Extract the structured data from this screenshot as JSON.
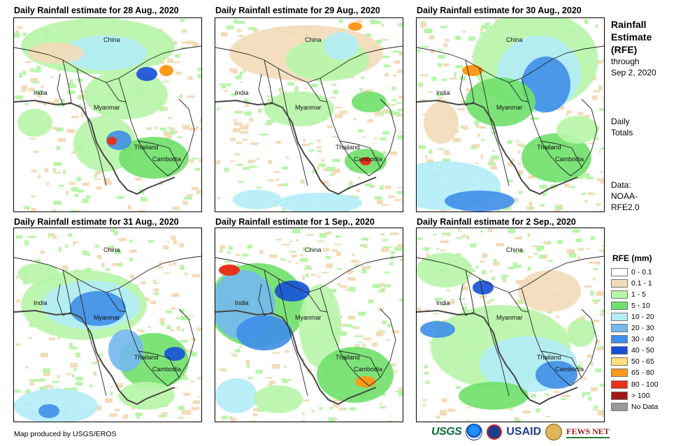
{
  "panels": [
    {
      "title": "Daily Rainfall estimate for 28 Aug., 2020",
      "labels": {
        "china": "China",
        "india": "India",
        "myanmar": "Myanmar",
        "thailand": "Thailand",
        "cambodia": "Cambodia"
      }
    },
    {
      "title": "Daily Rainfall estimate for 29 Aug., 2020",
      "labels": {
        "china": "China",
        "india": "India",
        "myanmar": "Myanmar",
        "thailand": "Thailand",
        "cambodia": "Cambodia"
      }
    },
    {
      "title": "Daily Rainfall estimate for 30 Aug., 2020",
      "labels": {
        "china": "China",
        "india": "India",
        "myanmar": "Myanmar",
        "thailand": "Thailand",
        "cambodia": "Cambodia"
      }
    },
    {
      "title": "Daily Rainfall estimate for 31 Aug., 2020",
      "labels": {
        "china": "China",
        "india": "India",
        "myanmar": "Myanmar",
        "thailand": "Thailand",
        "cambodia": "Cambodia"
      }
    },
    {
      "title": "Daily Rainfall estimate for 1 Sep., 2020",
      "labels": {
        "china": "China",
        "india": "India",
        "myanmar": "Myanmar",
        "thailand": "Thailand",
        "cambodia": "Cambodia"
      }
    },
    {
      "title": "Daily Rainfall estimate for 2 Sep., 2020",
      "labels": {
        "china": "China",
        "india": "India",
        "myanmar": "Myanmar",
        "thailand": "Thailand",
        "cambodia": "Cambodia"
      }
    }
  ],
  "side": {
    "title_lines": [
      "Rainfall",
      "Estimate",
      "(RFE)"
    ],
    "through": "through",
    "date": "Sep 2, 2020",
    "daily": "Daily",
    "totals": "Totals",
    "data_label": "Data:",
    "data_source_1": "NOAA-",
    "data_source_2": "RFE2.0"
  },
  "legend": {
    "title": "RFE (mm)",
    "items": [
      {
        "label": "0 - 0.1",
        "color": "#ffffff"
      },
      {
        "label": "0.1 - 1",
        "color": "#f2dcb9"
      },
      {
        "label": "1 - 5",
        "color": "#b7f5a8"
      },
      {
        "label": "5 - 10",
        "color": "#6fe06a"
      },
      {
        "label": "10 - 20",
        "color": "#b2ecf7"
      },
      {
        "label": "20 - 30",
        "color": "#74b8f0"
      },
      {
        "label": "30 - 40",
        "color": "#3f8ee8"
      },
      {
        "label": "40 - 50",
        "color": "#1650d8"
      },
      {
        "label": "50 - 65",
        "color": "#ffe07a"
      },
      {
        "label": "65 - 80",
        "color": "#ff9a1a"
      },
      {
        "label": "80 - 100",
        "color": "#e8321c"
      },
      {
        "label": "> 100",
        "color": "#a01818"
      },
      {
        "label": "No Data",
        "color": "#9a9a9a"
      }
    ]
  },
  "credit": "Map produced by USGS/EROS",
  "logos": {
    "usgs": "USGS",
    "usaid": "USAID",
    "fews": "FEWS NET"
  }
}
